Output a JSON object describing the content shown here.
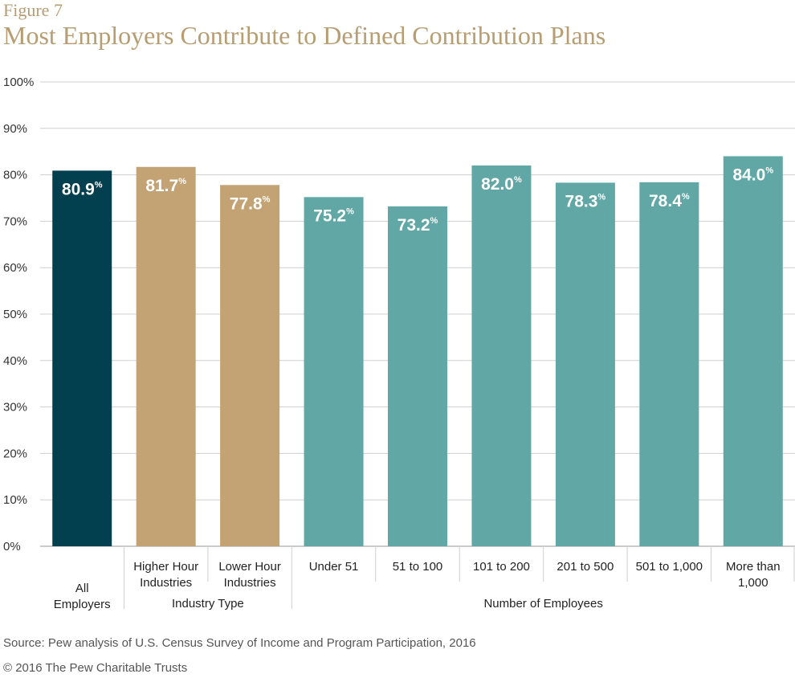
{
  "figure": {
    "label": "Figure 7",
    "title": "Most Employers Contribute to Defined Contribution Plans"
  },
  "chart_data": {
    "type": "bar",
    "title": "Most Employers Contribute to Defined Contribution Plans",
    "ylim": [
      0,
      100
    ],
    "yticks": [
      "0%",
      "10%",
      "20%",
      "30%",
      "40%",
      "50%",
      "60%",
      "70%",
      "80%",
      "90%",
      "100%"
    ],
    "grid": true,
    "categories": [
      [
        "All",
        "Employers"
      ],
      [
        "Higher Hour",
        "Industries"
      ],
      [
        "Lower Hour",
        "Industries"
      ],
      [
        "Under 51"
      ],
      [
        "51 to 100"
      ],
      [
        "101 to 200"
      ],
      [
        "201 to 500"
      ],
      [
        "501 to 1,000"
      ],
      [
        "More than",
        "1,000"
      ]
    ],
    "values": [
      80.9,
      81.7,
      77.8,
      75.2,
      73.2,
      82.0,
      78.3,
      78.4,
      84.0
    ],
    "value_labels": [
      "80.9",
      "81.7",
      "77.8",
      "75.2",
      "73.2",
      "82.0",
      "78.3",
      "78.4",
      "84.0"
    ],
    "value_suffix": "%",
    "colors": [
      "#02404f",
      "#c3a274",
      "#c3a274",
      "#60a7a5",
      "#60a7a5",
      "#60a7a5",
      "#60a7a5",
      "#60a7a5",
      "#60a7a5"
    ],
    "groups": [
      {
        "label": "Industry Type",
        "from": 1,
        "to": 2
      },
      {
        "label": "Number of Employees",
        "from": 3,
        "to": 8
      }
    ]
  },
  "footer": {
    "source": "Source: Pew analysis of U.S. Census Survey of Income and Program Participation, 2016",
    "copyright": "© 2016 The Pew Charitable Trusts"
  }
}
